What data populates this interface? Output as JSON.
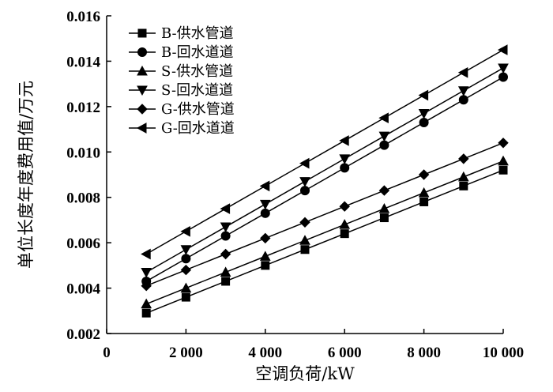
{
  "chart_data": {
    "type": "line",
    "xlabel": "空调负荷/kW",
    "ylabel": "单位长度年度费用值/万元",
    "xlim": [
      0,
      10000
    ],
    "ylim": [
      0.002,
      0.016
    ],
    "x_ticks": [
      0,
      2000,
      4000,
      6000,
      8000,
      10000
    ],
    "x_tick_labels": [
      "0",
      "2 000",
      "4 000",
      "6 000",
      "8 000",
      "10 000"
    ],
    "y_ticks": [
      0.002,
      0.004,
      0.006,
      0.008,
      0.01,
      0.012,
      0.014,
      0.016
    ],
    "y_tick_labels": [
      "0.002",
      "0.004",
      "0.006",
      "0.008",
      "0.010",
      "0.012",
      "0.014",
      "0.016"
    ],
    "grid": false,
    "legend_position": "top-left",
    "x": [
      1000,
      2000,
      3000,
      4000,
      5000,
      6000,
      7000,
      8000,
      9000,
      10000
    ],
    "series": [
      {
        "name": "B-供水管道",
        "marker": "square",
        "values": [
          0.0029,
          0.0036,
          0.0043,
          0.005,
          0.0057,
          0.0064,
          0.0071,
          0.0078,
          0.0085,
          0.0092
        ]
      },
      {
        "name": "B-回水道道",
        "marker": "circle",
        "values": [
          0.0043,
          0.0053,
          0.0063,
          0.0073,
          0.0083,
          0.0093,
          0.0103,
          0.0113,
          0.0123,
          0.0133
        ]
      },
      {
        "name": "S-供水管道",
        "marker": "triangle-up",
        "values": [
          0.0033,
          0.004,
          0.0047,
          0.0054,
          0.0061,
          0.0068,
          0.0075,
          0.0082,
          0.0089,
          0.0096
        ]
      },
      {
        "name": "S-回水道道",
        "marker": "triangle-down",
        "values": [
          0.0047,
          0.0057,
          0.0067,
          0.0077,
          0.0087,
          0.0097,
          0.0107,
          0.0117,
          0.0127,
          0.0137
        ]
      },
      {
        "name": "G-供水管道",
        "marker": "diamond",
        "values": [
          0.0041,
          0.0048,
          0.0055,
          0.0062,
          0.0069,
          0.0076,
          0.0083,
          0.009,
          0.0097,
          0.0104
        ]
      },
      {
        "name": "G-回水道道",
        "marker": "triangle-left",
        "values": [
          0.0055,
          0.0065,
          0.0075,
          0.0085,
          0.0095,
          0.0105,
          0.0115,
          0.0125,
          0.0135,
          0.0145
        ]
      }
    ]
  }
}
